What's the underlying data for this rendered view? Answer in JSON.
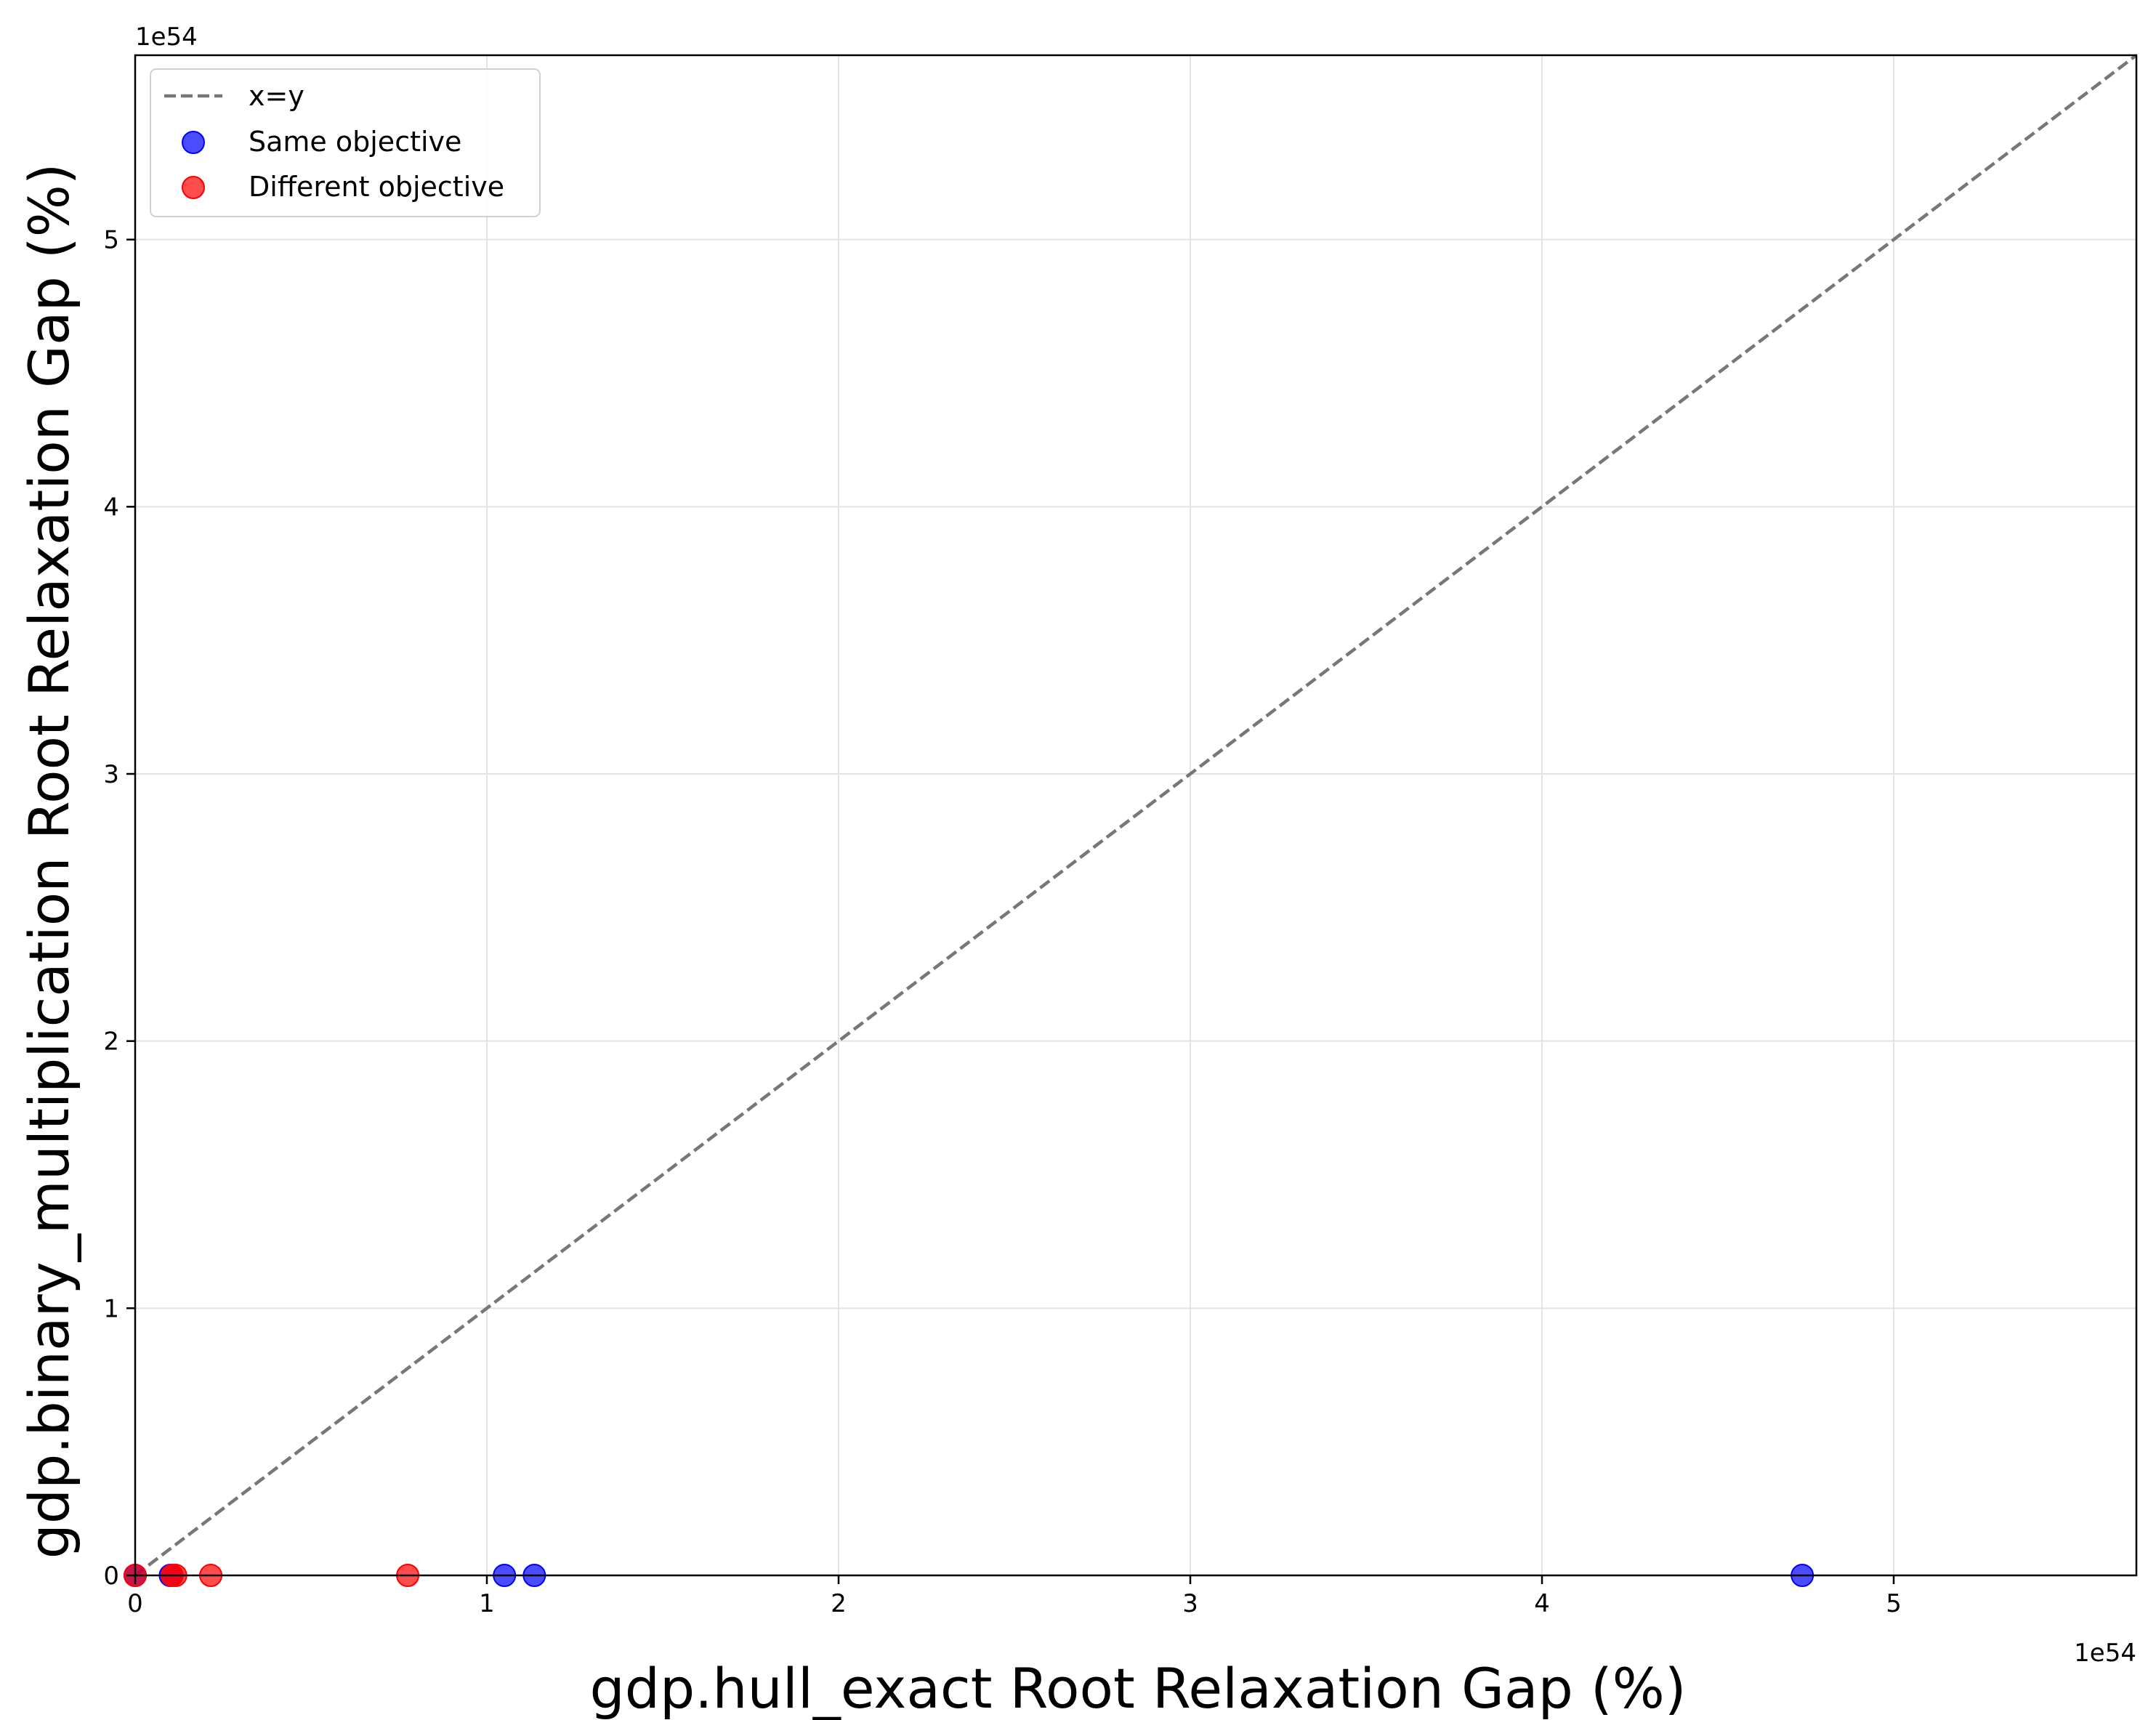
{
  "chart_data": {
    "type": "scatter",
    "xlabel": "gdp.hull_exact Root Relaxation Gap (%)",
    "ylabel": "gdp.binary_multiplication Root Relaxation Gap (%)",
    "x_offset_label": "1e54",
    "y_offset_label": "1e54",
    "xlim": [
      0,
      5.69
    ],
    "ylim": [
      0,
      5.69
    ],
    "x_ticks": [
      0,
      1,
      2,
      3,
      4,
      5
    ],
    "y_ticks": [
      0,
      1,
      2,
      3,
      4,
      5
    ],
    "x_tick_labels": [
      "0",
      "1",
      "2",
      "3",
      "4",
      "5"
    ],
    "y_tick_labels": [
      "0",
      "1",
      "2",
      "3",
      "4",
      "5"
    ],
    "grid": true,
    "legend_position": "upper-left",
    "reference_line": {
      "name": "x=y",
      "style": "dashed",
      "color": "#777777"
    },
    "series": [
      {
        "name": "Same objective",
        "color": "#0000ff",
        "x": [
          0.0,
          0.1,
          1.05,
          1.135,
          4.74
        ],
        "y": [
          0,
          0,
          0,
          0,
          0
        ]
      },
      {
        "name": "Different objective",
        "color": "#ff0000",
        "x": [
          0.0,
          0.105,
          0.115,
          0.215,
          0.775
        ],
        "y": [
          0,
          0,
          0,
          0,
          0
        ]
      }
    ]
  }
}
